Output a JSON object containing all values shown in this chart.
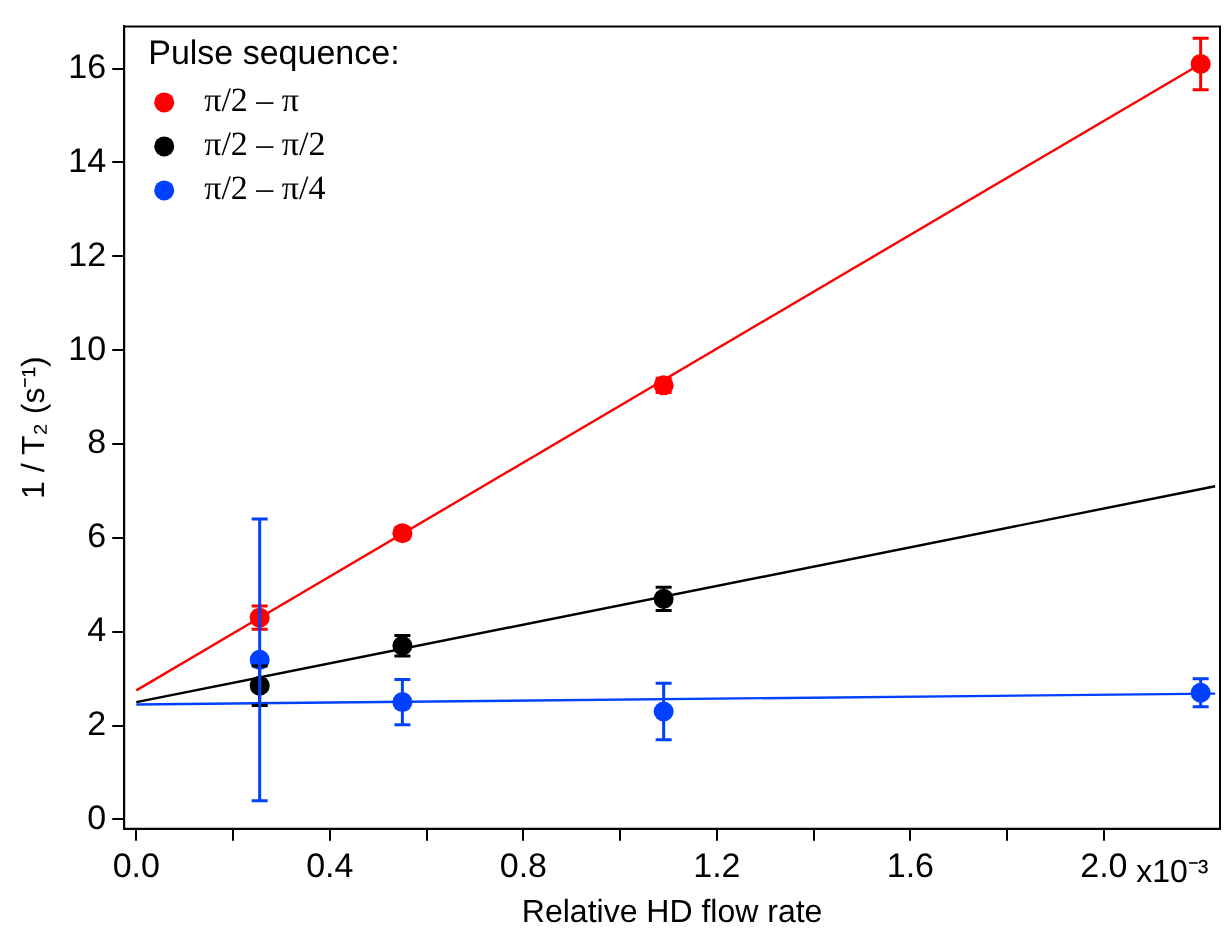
{
  "chart_data": {
    "type": "scatter",
    "xlabel": "Relative HD flow rate",
    "ylabel": "1 / T₂ (s⁻¹)",
    "legend_title": "Pulse sequence:",
    "legend": "top left",
    "grid": false,
    "marker": "circle",
    "xlim": [
      -0.025,
      2.24
    ],
    "ylim": [
      -0.2,
      16.9
    ],
    "annotations": [
      "x10⁻³"
    ],
    "xticks": [
      {
        "value": 0,
        "label": "0.0"
      },
      {
        "value": 0.2,
        "label": null
      },
      {
        "value": 0.4,
        "label": "0.4"
      },
      {
        "value": 0.6,
        "label": null
      },
      {
        "value": 0.8,
        "label": "0.8"
      },
      {
        "value": 1.0,
        "label": null
      },
      {
        "value": 1.2,
        "label": "1.2"
      },
      {
        "value": 1.4,
        "label": null
      },
      {
        "value": 1.6,
        "label": "1.6"
      },
      {
        "value": 1.8,
        "label": null
      },
      {
        "value": 2.0,
        "label": "2.0"
      }
    ],
    "yticks": [
      0,
      2,
      4,
      6,
      8,
      10,
      12,
      14,
      16
    ],
    "series": [
      {
        "name": "π/2 – π",
        "color": "#ff0000",
        "x": [
          0.255,
          0.55,
          1.09,
          2.2
        ],
        "values": [
          4.3,
          6.1,
          9.25,
          16.1
        ],
        "errors": [
          0.25,
          0.12,
          0.15,
          0.55
        ]
      },
      {
        "name": "π/2 – π/2",
        "color": "#000000",
        "x": [
          0.255,
          0.55,
          1.09
        ],
        "values": [
          2.85,
          3.7,
          4.7
        ],
        "errors": [
          0.42,
          0.22,
          0.25
        ]
      },
      {
        "name": "π/2 – π/4",
        "color": "#0040ff",
        "x": [
          0.255,
          0.55,
          1.09,
          2.2
        ],
        "values": [
          3.4,
          2.5,
          2.3,
          2.7
        ],
        "errors": [
          3.0,
          0.48,
          0.6,
          0.3
        ]
      },
      {
        "type": "line",
        "color": "#ff0000",
        "marker": "none",
        "x": [
          0,
          2.2
        ],
        "values": [
          2.75,
          16.1
        ]
      },
      {
        "type": "line",
        "color": "#000000",
        "marker": "none",
        "x": [
          0,
          2.23
        ],
        "values": [
          2.5,
          7.1
        ]
      },
      {
        "type": "line",
        "color": "#0040ff",
        "marker": "none",
        "x": [
          0,
          2.23
        ],
        "values": [
          2.45,
          2.68
        ]
      }
    ]
  }
}
